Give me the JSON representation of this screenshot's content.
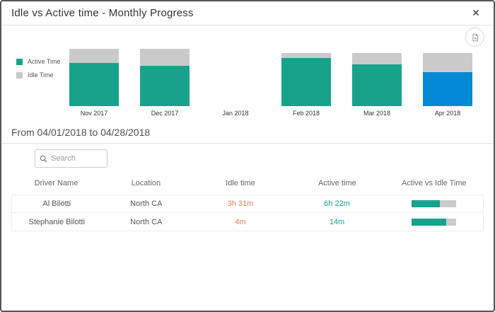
{
  "dialog": {
    "title": "Idle vs Active time - Monthly Progress",
    "close_glyph": "✕"
  },
  "colors": {
    "active": "#17A28C",
    "idle": "#CACACA",
    "highlight_blue": "#0289D6",
    "idle_text": "#E87A52",
    "active_text": "#17A28C"
  },
  "chart_data": {
    "type": "stacked-bar",
    "title": "Idle vs Active time - Monthly Progress",
    "categories": [
      "Nov 2017",
      "Dec 2017",
      "Jan 2018",
      "Feb 2018",
      "Mar 2018",
      "Apr 2018"
    ],
    "series": [
      {
        "name": "Active Time",
        "color": "#17A28C",
        "values": [
          75,
          70,
          0,
          84,
          73,
          59
        ]
      },
      {
        "name": "Idle Time",
        "color": "#CACACA",
        "values": [
          25,
          30,
          0,
          9,
          20,
          34
        ]
      }
    ],
    "units": "relative bar height, no value axis shown (100 = tallest bar)",
    "highlighted_category": "Apr 2018",
    "highlight_color": "#0289D6",
    "legend_position": "left",
    "legend": [
      "Active Time",
      "Idle Time"
    ],
    "grid": false
  },
  "period": {
    "heading": "From 04/01/2018 to 04/28/2018"
  },
  "search": {
    "placeholder": "Search",
    "value": ""
  },
  "table": {
    "columns": [
      "Driver Name",
      "Location",
      "Idle time",
      "Active time",
      "Active vs Idle Time"
    ],
    "rows": [
      {
        "driver": "Al Bilotti",
        "location": "North CA",
        "idle": "3h 31m",
        "active": "6h 22m",
        "active_pct": 64
      },
      {
        "driver": "Stephanie Bilotti",
        "location": "North CA",
        "idle": "4m",
        "active": "14m",
        "active_pct": 78
      }
    ]
  }
}
